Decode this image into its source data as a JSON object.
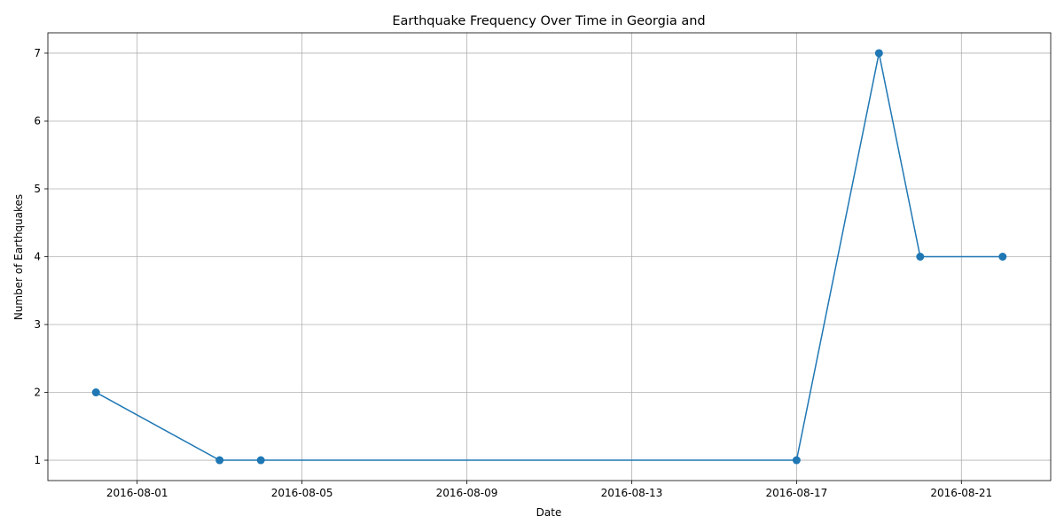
{
  "chart_data": {
    "type": "line",
    "title": "Earthquake Frequency Over Time in Georgia and",
    "xlabel": "Date",
    "ylabel": "Number of Earthquakes",
    "x": [
      "2016-07-31",
      "2016-08-03",
      "2016-08-04",
      "2016-08-17",
      "2016-08-19",
      "2016-08-20",
      "2016-08-22"
    ],
    "series": [
      {
        "values": [
          2,
          1,
          1,
          1,
          7,
          4,
          4
        ],
        "color": "#1f77b4",
        "marker": "circle"
      }
    ],
    "x_ticks": [
      "2016-08-01",
      "2016-08-05",
      "2016-08-09",
      "2016-08-13",
      "2016-08-17",
      "2016-08-21"
    ],
    "y_ticks": [
      1,
      2,
      3,
      4,
      5,
      6,
      7
    ],
    "xlim": [
      "2016-07-29 20:00",
      "2016-08-23 04:00"
    ],
    "ylim": [
      0.7,
      7.3
    ],
    "grid": true
  }
}
